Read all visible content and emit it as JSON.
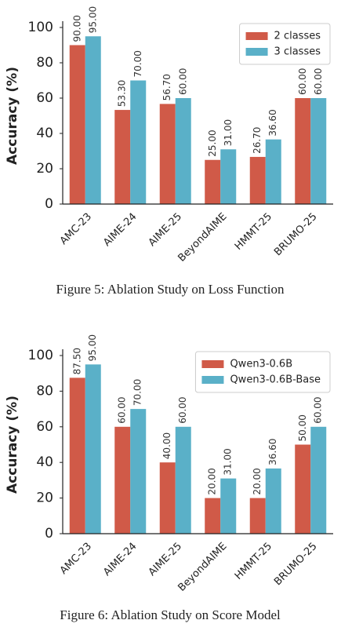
{
  "chart_data": [
    {
      "type": "bar",
      "caption": "Figure 5: Ablation Study on Loss Function",
      "ylabel": "Accuracy (%)",
      "categories": [
        "AMC-23",
        "AIME-24",
        "AIME-25",
        "BeyondAIME",
        "HMMT-25",
        "BRUMO-25"
      ],
      "series": [
        {
          "name": "2 classes",
          "color": "#d05a48",
          "values": [
            90,
            53.3,
            56.7,
            25,
            26.7,
            60
          ],
          "value_labels": [
            "90.00",
            "53.30",
            "56.70",
            "25.00",
            "26.70",
            "60.00"
          ]
        },
        {
          "name": "3 classes",
          "color": "#5ab0c8",
          "values": [
            95,
            70,
            60,
            31,
            36.6,
            60
          ],
          "value_labels": [
            "95.00",
            "70.00",
            "60.00",
            "31.00",
            "36.60",
            "60.00"
          ]
        }
      ],
      "ylim": [
        0,
        100
      ],
      "yticks": [
        0,
        20,
        40,
        60,
        80,
        100
      ],
      "grid": false,
      "legend": "upper right"
    },
    {
      "type": "bar",
      "caption": "Figure 6: Ablation Study on Score Model",
      "ylabel": "Accuracy (%)",
      "categories": [
        "AMC-23",
        "AIME-24",
        "AIME-25",
        "BeyondAIME",
        "HMMT-25",
        "BRUMO-25"
      ],
      "series": [
        {
          "name": "Qwen3-0.6B",
          "color": "#d05a48",
          "values": [
            87.5,
            60,
            40,
            20,
            20,
            50
          ],
          "value_labels": [
            "87.50",
            "60.00",
            "40.00",
            "20.00",
            "20.00",
            "50.00"
          ]
        },
        {
          "name": "Qwen3-0.6B-Base",
          "color": "#5ab0c8",
          "values": [
            95,
            70,
            60,
            31,
            36.6,
            60
          ],
          "value_labels": [
            "95.00",
            "70.00",
            "60.00",
            "31.00",
            "36.60",
            "60.00"
          ]
        }
      ],
      "ylim": [
        0,
        100
      ],
      "yticks": [
        0,
        20,
        40,
        60,
        80,
        100
      ],
      "grid": false,
      "legend": "upper right"
    }
  ]
}
